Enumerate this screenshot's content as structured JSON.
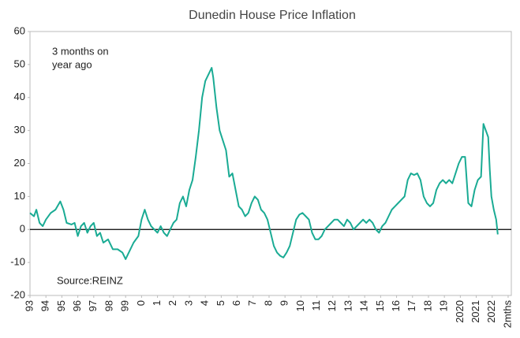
{
  "chart_data": {
    "type": "line",
    "title": "Dunedin House Price Inflation",
    "annotation": [
      "3 months  on",
      "year ago"
    ],
    "source": "Source:REINZ",
    "color": "#1aab94",
    "grid": false,
    "xlim": [
      1993,
      2023.2
    ],
    "ylim": [
      -20,
      60
    ],
    "yticks": [
      -20,
      -10,
      0,
      10,
      20,
      30,
      40,
      50,
      60
    ],
    "xticks": [
      {
        "value": 1993,
        "label": "93"
      },
      {
        "value": 1994,
        "label": "94"
      },
      {
        "value": 1995,
        "label": "95"
      },
      {
        "value": 1996,
        "label": "96"
      },
      {
        "value": 1997,
        "label": "97"
      },
      {
        "value": 1998,
        "label": "98"
      },
      {
        "value": 1999,
        "label": "99"
      },
      {
        "value": 2000,
        "label": "0"
      },
      {
        "value": 2001,
        "label": "1"
      },
      {
        "value": 2002,
        "label": "2"
      },
      {
        "value": 2003,
        "label": "3"
      },
      {
        "value": 2004,
        "label": "4"
      },
      {
        "value": 2005,
        "label": "5"
      },
      {
        "value": 2006,
        "label": "6"
      },
      {
        "value": 2007,
        "label": "7"
      },
      {
        "value": 2008,
        "label": "8"
      },
      {
        "value": 2009,
        "label": "9"
      },
      {
        "value": 2010,
        "label": "10"
      },
      {
        "value": 2011,
        "label": "11"
      },
      {
        "value": 2012,
        "label": "12"
      },
      {
        "value": 2013,
        "label": "13"
      },
      {
        "value": 2014,
        "label": "14"
      },
      {
        "value": 2015,
        "label": "15"
      },
      {
        "value": 2016,
        "label": "16"
      },
      {
        "value": 2017,
        "label": "17"
      },
      {
        "value": 2018,
        "label": "18"
      },
      {
        "value": 2019,
        "label": "19"
      },
      {
        "value": 2020,
        "label": "2020"
      },
      {
        "value": 2021,
        "label": "2021"
      },
      {
        "value": 2022,
        "label": "2022"
      },
      {
        "value": 2023,
        "label": "2mths"
      }
    ],
    "x": [
      1993.0,
      1993.25,
      1993.4,
      1993.6,
      1993.8,
      1994.0,
      1994.3,
      1994.6,
      1994.9,
      1995.1,
      1995.3,
      1995.6,
      1995.8,
      1996.0,
      1996.2,
      1996.4,
      1996.6,
      1996.8,
      1997.0,
      1997.2,
      1997.4,
      1997.6,
      1997.9,
      1998.2,
      1998.5,
      1998.8,
      1999.0,
      1999.2,
      1999.5,
      1999.8,
      2000.0,
      2000.2,
      2000.4,
      2000.6,
      2000.8,
      2001.0,
      2001.2,
      2001.4,
      2001.6,
      2001.8,
      2002.0,
      2002.2,
      2002.4,
      2002.6,
      2002.8,
      2003.0,
      2003.2,
      2003.4,
      2003.6,
      2003.8,
      2004.0,
      2004.2,
      2004.4,
      2004.5,
      2004.7,
      2004.9,
      2005.1,
      2005.3,
      2005.5,
      2005.7,
      2005.9,
      2006.1,
      2006.3,
      2006.5,
      2006.7,
      2006.9,
      2007.1,
      2007.3,
      2007.5,
      2007.7,
      2007.9,
      2008.1,
      2008.3,
      2008.5,
      2008.7,
      2008.9,
      2009.1,
      2009.3,
      2009.5,
      2009.7,
      2009.9,
      2010.1,
      2010.3,
      2010.5,
      2010.7,
      2010.9,
      2011.1,
      2011.3,
      2011.5,
      2011.7,
      2011.9,
      2012.1,
      2012.3,
      2012.5,
      2012.7,
      2012.9,
      2013.1,
      2013.3,
      2013.5,
      2013.7,
      2013.9,
      2014.1,
      2014.3,
      2014.5,
      2014.7,
      2014.9,
      2015.1,
      2015.3,
      2015.5,
      2015.7,
      2015.9,
      2016.1,
      2016.3,
      2016.5,
      2016.7,
      2016.9,
      2017.1,
      2017.3,
      2017.5,
      2017.7,
      2017.9,
      2018.1,
      2018.3,
      2018.5,
      2018.7,
      2018.9,
      2019.1,
      2019.3,
      2019.5,
      2019.7,
      2019.9,
      2020.1,
      2020.3,
      2020.5,
      2020.7,
      2020.9,
      2021.1,
      2021.3,
      2021.45,
      2021.6,
      2021.75,
      2021.85,
      2021.95,
      2022.1,
      2022.25,
      2022.35
    ],
    "values": [
      5,
      4,
      6,
      2,
      1,
      3,
      5,
      6,
      8.5,
      6,
      2,
      1.5,
      2,
      -2,
      1,
      2,
      -1,
      1,
      2,
      -2,
      -1,
      -4,
      -3,
      -6,
      -6,
      -7,
      -9,
      -7,
      -4,
      -2,
      3,
      6,
      3,
      1,
      0,
      -1,
      1,
      -1,
      -2,
      0,
      2,
      3,
      8,
      10,
      7,
      12,
      15,
      22,
      30,
      40,
      45,
      47,
      49,
      46,
      37,
      30,
      27,
      24,
      16,
      17,
      12,
      7,
      6,
      4,
      5,
      8,
      10,
      9,
      6,
      5,
      3,
      -1,
      -5,
      -7,
      -8,
      -8.5,
      -7,
      -5,
      -1,
      3,
      4.5,
      5,
      4,
      3,
      -1,
      -3,
      -3,
      -2,
      0,
      1,
      2,
      3,
      3,
      2,
      1,
      3,
      2,
      0,
      1,
      2,
      3,
      2,
      3,
      2,
      0,
      -1,
      1,
      2,
      4,
      6,
      7,
      8,
      9,
      10,
      15,
      17,
      16.5,
      17,
      15,
      10,
      8,
      7,
      8,
      12,
      14,
      15,
      14,
      15,
      14,
      17,
      20,
      22,
      22,
      8,
      7,
      12,
      15,
      16,
      32,
      30,
      28,
      18,
      10,
      6,
      3,
      -1.5
    ]
  }
}
